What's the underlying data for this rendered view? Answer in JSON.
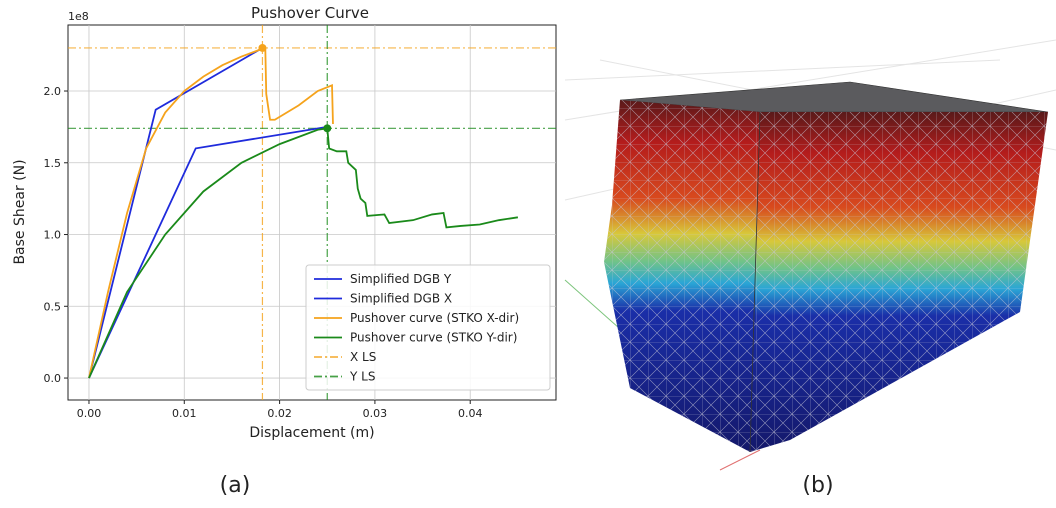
{
  "chart_data": {
    "type": "line",
    "title": "Pushover Curve",
    "x_label": "Displacement (m)",
    "y_label": "Base Shear (N)",
    "y_offset": "1e8",
    "xlim": [
      -0.0022,
      0.049
    ],
    "ylim": [
      -0.153,
      2.46
    ],
    "xticks": [
      {
        "value": 0,
        "label": "0.00"
      },
      0.01,
      0.02,
      0.03,
      0.04
    ],
    "yticks": [
      {
        "value": 0,
        "label": "0.0"
      },
      0.5,
      {
        "value": 1,
        "label": "1.0"
      },
      1.5,
      {
        "value": 2,
        "label": "2.0"
      }
    ],
    "grid": true,
    "legend": "lower right",
    "series": [
      {
        "name": "Simplified DGB Y",
        "color": "#1f2bdc",
        "x": [
          0,
          0.0112,
          0.025
        ],
        "values": [
          0,
          1.6,
          1.75
        ]
      },
      {
        "name": "Simplified DGB X",
        "color": "#1f2bdc",
        "x": [
          0,
          0.007,
          0.0182
        ],
        "values": [
          0,
          1.87,
          2.3
        ]
      },
      {
        "name": "Pushover curve (STKO X-dir)",
        "color": "#f5a31c",
        "x": [
          0,
          0.002,
          0.004,
          0.006,
          0.008,
          0.01,
          0.012,
          0.014,
          0.016,
          0.018,
          0.0182,
          0.0185,
          0.0186,
          0.019,
          0.0195,
          0.02,
          0.022,
          0.024,
          0.0255,
          0.0256
        ],
        "values": [
          0,
          0.6,
          1.15,
          1.6,
          1.85,
          2.0,
          2.1,
          2.18,
          2.24,
          2.29,
          2.3,
          2.3,
          1.98,
          1.8,
          1.8,
          1.82,
          1.9,
          2.0,
          2.04,
          1.77
        ]
      },
      {
        "name": "Pushover curve (STKO Y-dir)",
        "color": "#1a8a1a",
        "x": [
          0,
          0.004,
          0.008,
          0.012,
          0.016,
          0.02,
          0.024,
          0.025,
          0.0252,
          0.026,
          0.027,
          0.0272,
          0.028,
          0.0282,
          0.0285,
          0.029,
          0.0292,
          0.031,
          0.0315,
          0.034,
          0.036,
          0.0372,
          0.0375,
          0.039,
          0.041,
          0.043,
          0.045
        ],
        "values": [
          0,
          0.6,
          1.0,
          1.3,
          1.5,
          1.63,
          1.73,
          1.74,
          1.6,
          1.58,
          1.58,
          1.5,
          1.45,
          1.32,
          1.25,
          1.22,
          1.13,
          1.14,
          1.08,
          1.1,
          1.14,
          1.15,
          1.05,
          1.06,
          1.07,
          1.1,
          1.12
        ]
      }
    ],
    "limit_lines": [
      {
        "name": "X LS",
        "color": "#f5a31c",
        "x": 0.0182,
        "y": 2.3
      },
      {
        "name": "Y LS",
        "color": "#1a8a1a",
        "x": 0.025,
        "y": 1.74
      }
    ]
  },
  "captions": [
    "(a)",
    "(b)"
  ]
}
